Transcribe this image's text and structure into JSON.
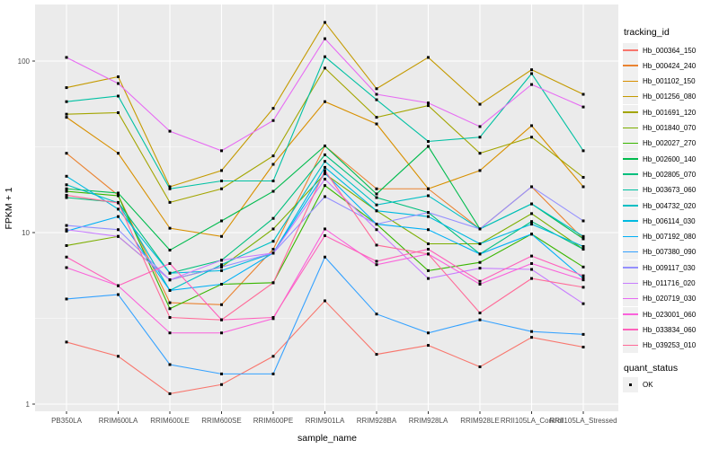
{
  "figure": {
    "background": "#FFFFFF",
    "panel_background": "#EBEBEB",
    "grid_color": "#FFFFFF",
    "tick_color": "#333333",
    "tick_label_color": "#4D4D4D",
    "marker_color": "#000000"
  },
  "legend": {
    "series_title": "tracking_id",
    "marker_title": "quant_status",
    "marker_items": [
      {
        "label": "OK",
        "shape": "filled-square",
        "color": "#000000"
      }
    ]
  },
  "chart_data": {
    "type": "line",
    "title": "",
    "xlabel": "sample_name",
    "ylabel": "FPKM + 1",
    "y_scale": "log10",
    "ylim": [
      0.92,
      210
    ],
    "y_ticks": [
      {
        "label": "1",
        "value": 1
      },
      {
        "label": "10",
        "value": 10
      },
      {
        "label": "100",
        "value": 100
      }
    ],
    "y_minor_values": [
      3.1623,
      31.6228
    ],
    "grid": true,
    "legend_position": "right",
    "marker": "filled-square-black",
    "x_categories": [
      "PB350LA",
      "RRIM600LA",
      "RRIM600LE",
      "RRIM600SE",
      "RRIM600PE",
      "RRIM901LA",
      "RRIM928BA",
      "RRIM928LA",
      "RRIM928LE",
      "RRII105LA_Control",
      "RRII105LA_Stressed"
    ],
    "series": [
      {
        "name": "Hb_000364_150",
        "color": "#F8766D",
        "values": [
          2.3,
          1.9,
          1.15,
          1.3,
          1.9,
          4.0,
          1.95,
          2.2,
          1.65,
          2.45,
          2.15
        ]
      },
      {
        "name": "Hb_000424_240",
        "color": "#EA8331",
        "values": [
          29,
          16.5,
          3.9,
          3.8,
          8.0,
          32,
          18,
          18,
          10.5,
          18.5,
          9.2
        ]
      },
      {
        "name": "Hb_001102_150",
        "color": "#D89000",
        "values": [
          47,
          29,
          10.6,
          9.5,
          25,
          58,
          43,
          18,
          23,
          42,
          18.5
        ]
      },
      {
        "name": "Hb_001256_080",
        "color": "#C49A00",
        "values": [
          70,
          81,
          18.5,
          23,
          53,
          168,
          69,
          105,
          56,
          89,
          64
        ]
      },
      {
        "name": "Hb_001691_120",
        "color": "#A3A500",
        "values": [
          49,
          50,
          15,
          18,
          28,
          91,
          47,
          55,
          29,
          36,
          21
        ]
      },
      {
        "name": "Hb_001840_070",
        "color": "#7CAE00",
        "values": [
          8.4,
          9.5,
          5.3,
          6.3,
          10.5,
          22,
          13.4,
          8.6,
          8.6,
          12.9,
          8.0
        ]
      },
      {
        "name": "Hb_002027_270",
        "color": "#39B600",
        "values": [
          17.4,
          16.4,
          3.6,
          5.0,
          5.1,
          18.8,
          11.2,
          6.0,
          6.7,
          9.8,
          6.3
        ]
      },
      {
        "name": "Hb_002600_140",
        "color": "#00BB4E",
        "values": [
          18,
          17,
          7.9,
          11.7,
          17.4,
          32,
          16.8,
          31.8,
          10.5,
          14.7,
          9.2
        ]
      },
      {
        "name": "Hb_002805_070",
        "color": "#00BF7D",
        "values": [
          16,
          15,
          5.8,
          6.9,
          12.1,
          28.4,
          16,
          13.1,
          7.5,
          11.6,
          8.0
        ]
      },
      {
        "name": "Hb_003673_060",
        "color": "#00C1A3",
        "values": [
          58,
          62.5,
          18,
          20,
          20,
          106,
          59.5,
          34,
          36,
          84.5,
          30
        ]
      },
      {
        "name": "Hb_004732_020",
        "color": "#00BFC4",
        "values": [
          19,
          14.9,
          4.6,
          6.5,
          8.9,
          26,
          14.5,
          16.4,
          10.5,
          14.7,
          9.5
        ]
      },
      {
        "name": "Hb_006114_030",
        "color": "#00BAE0",
        "values": [
          21.3,
          13.7,
          5.8,
          6.0,
          7.6,
          24,
          13.4,
          12.4,
          8.6,
          11.2,
          8.3
        ]
      },
      {
        "name": "Hb_007192_080",
        "color": "#00B0F6",
        "values": [
          10.2,
          12.4,
          4.6,
          5.0,
          7.6,
          22.2,
          11.2,
          10.4,
          7.5,
          9.8,
          5.4
        ]
      },
      {
        "name": "Hb_007380_090",
        "color": "#35A2FF",
        "values": [
          4.1,
          4.35,
          1.7,
          1.5,
          1.5,
          7.2,
          3.35,
          2.6,
          3.1,
          2.65,
          2.55
        ]
      },
      {
        "name": "Hb_009117_030",
        "color": "#9590FF",
        "values": [
          11,
          10.4,
          5.3,
          6.3,
          7.6,
          16.2,
          11.2,
          13.1,
          10.5,
          18.5,
          11.7
        ]
      },
      {
        "name": "Hb_011716_020",
        "color": "#C77CFF",
        "values": [
          10.4,
          9.5,
          5.3,
          6.9,
          7.6,
          20.5,
          10.4,
          5.4,
          6.2,
          6.1,
          3.85
        ]
      },
      {
        "name": "Hb_020719_030",
        "color": "#E76BF3",
        "values": [
          105,
          74,
          39,
          30,
          45,
          135,
          64,
          57,
          41.5,
          73,
          54
        ]
      },
      {
        "name": "Hb_023001_060",
        "color": "#FA62DB",
        "values": [
          6.25,
          4.9,
          2.6,
          2.6,
          3.15,
          10.5,
          6.5,
          7.5,
          5.0,
          6.6,
          5.3
        ]
      },
      {
        "name": "Hb_033834_060",
        "color": "#FF62BC",
        "values": [
          7.2,
          4.9,
          6.6,
          3.1,
          3.2,
          9.6,
          6.8,
          8.0,
          5.2,
          7.3,
          5.6
        ]
      },
      {
        "name": "Hb_039253_010",
        "color": "#FF6A98",
        "values": [
          16.5,
          14.9,
          3.2,
          3.1,
          5.1,
          23,
          8.45,
          7.5,
          3.4,
          5.4,
          4.8
        ]
      }
    ]
  }
}
